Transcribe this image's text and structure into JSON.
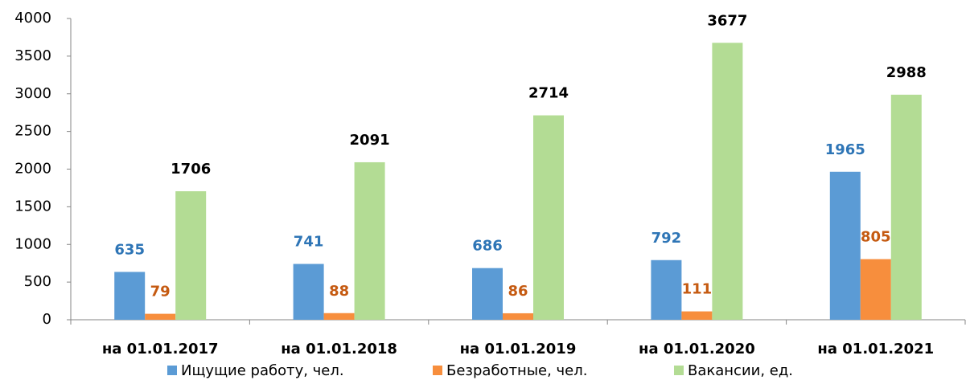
{
  "chart_data": {
    "type": "bar",
    "categories": [
      "на 01.01.2017",
      "на 01.01.2018",
      "на 01.01.2019",
      "на 01.01.2020",
      "на 01.01.2021"
    ],
    "series": [
      {
        "name": "Ищущие работу, чел.",
        "color": "#5b9bd5",
        "label_color": "#2e75b6",
        "values": [
          635,
          741,
          686,
          792,
          1965
        ]
      },
      {
        "name": "Безработные, чел.",
        "color": "#f78e3d",
        "label_color": "#c55a11",
        "values": [
          79,
          88,
          86,
          111,
          805
        ]
      },
      {
        "name": "Вакансии, ед.",
        "color": "#b3dc94",
        "label_color": "#000000",
        "values": [
          1706,
          2091,
          2714,
          3677,
          2988
        ]
      }
    ],
    "ylim": [
      0,
      4000
    ],
    "yticks": [
      0,
      500,
      1000,
      1500,
      2000,
      2500,
      3000,
      3500,
      4000
    ],
    "grid": false,
    "legend": "bottom"
  }
}
